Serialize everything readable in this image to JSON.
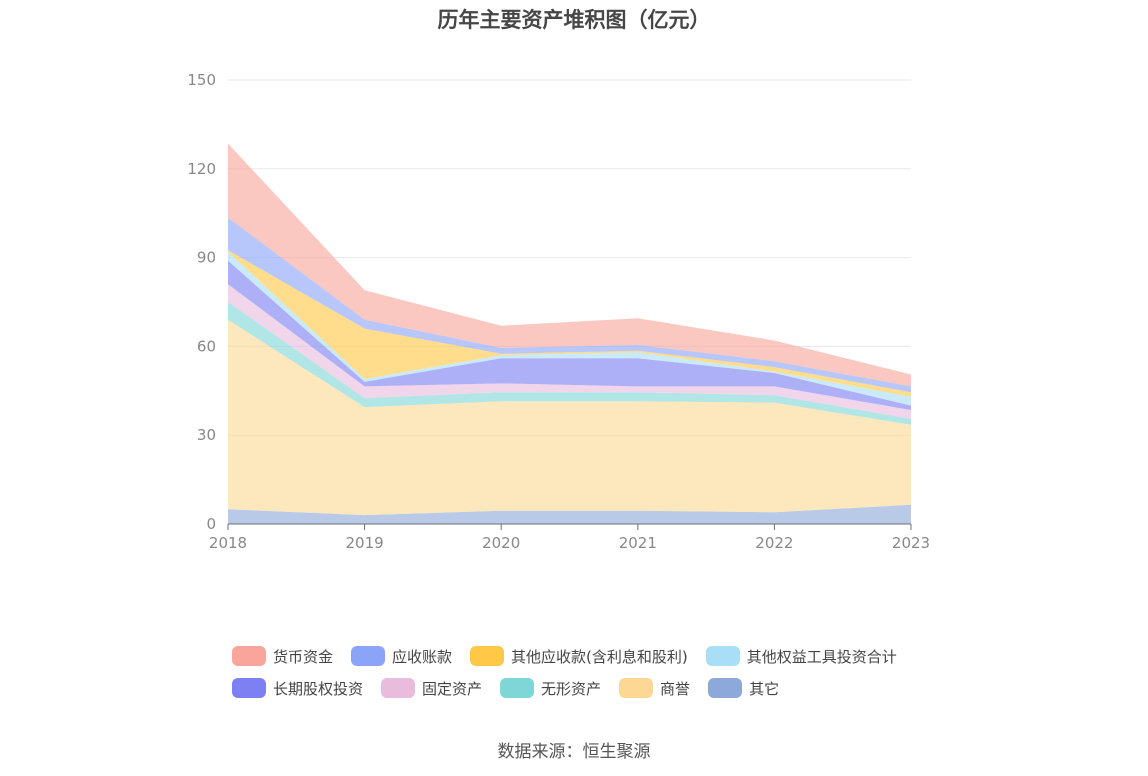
{
  "chart_data": {
    "type": "area",
    "stacked": true,
    "title": "历年主要资产堆积图（亿元）",
    "x": [
      "2018",
      "2019",
      "2020",
      "2021",
      "2022",
      "2023"
    ],
    "ylim": [
      0,
      150
    ],
    "yticks": [
      0,
      30,
      60,
      90,
      120,
      150
    ],
    "grid": true,
    "legend_position": "bottom",
    "series": [
      {
        "name": "其它",
        "color": "#8DA9DA",
        "values": [
          5,
          3,
          4.5,
          4.5,
          4,
          6.5
        ]
      },
      {
        "name": "商誉",
        "color": "#FCD894",
        "values": [
          64,
          36.5,
          37,
          37,
          37,
          27
        ]
      },
      {
        "name": "无形资产",
        "color": "#7FD6D6",
        "values": [
          6,
          3,
          3,
          3,
          2.5,
          2
        ]
      },
      {
        "name": "固定资产",
        "color": "#E9BBDD",
        "values": [
          6,
          4,
          3,
          2,
          3,
          3
        ]
      },
      {
        "name": "长期股权投资",
        "color": "#7D80F2",
        "values": [
          8,
          1.5,
          8.5,
          9.5,
          4.5,
          1.5
        ]
      },
      {
        "name": "其他权益工具投资合计",
        "color": "#A8DEF6",
        "values": [
          3,
          1,
          1,
          2,
          0.5,
          3
        ]
      },
      {
        "name": "其他应收款(含利息和股利)",
        "color": "#FFC846",
        "values": [
          0.5,
          17,
          0.5,
          0.5,
          1.5,
          1.5
        ]
      },
      {
        "name": "应收账款",
        "color": "#8CA4F8",
        "values": [
          11,
          3,
          2,
          2,
          2,
          2
        ]
      },
      {
        "name": "货币资金",
        "color": "#F9A59B",
        "values": [
          25,
          10,
          7.5,
          9,
          7,
          4
        ]
      }
    ]
  },
  "legend": {
    "row1": [
      "货币资金",
      "应收账款",
      "其他应收款(含利息和股利)",
      "其他权益工具投资合计"
    ],
    "row2": [
      "长期股权投资",
      "固定资产",
      "无形资产",
      "商誉",
      "其它"
    ]
  },
  "source": "数据来源：恒生聚源"
}
